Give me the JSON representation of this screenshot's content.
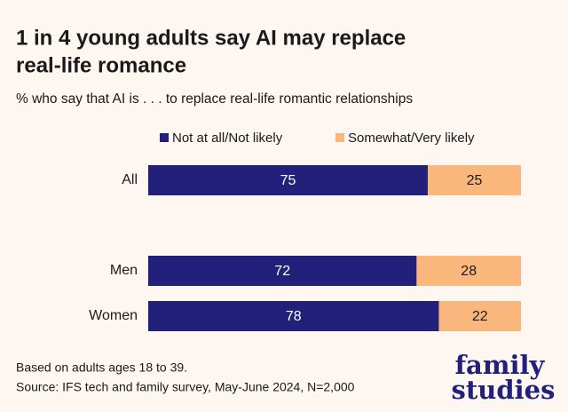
{
  "chart_data": {
    "type": "stacked-bar-horizontal",
    "title": [
      "1 in 4 young adults say AI may replace",
      "real-life romance"
    ],
    "subtitle": "% who say that AI is . . . to replace real-life romantic relationships",
    "categories": [
      "All",
      null,
      "Men",
      "Women"
    ],
    "series": [
      {
        "name": "Not at all/Not likely",
        "color": "#22207a",
        "values": [
          75,
          null,
          72,
          78
        ]
      },
      {
        "name": "Somewhat/Very likely",
        "color": "#fab77b",
        "values": [
          25,
          null,
          28,
          22
        ]
      }
    ],
    "xlim": [
      0,
      100
    ],
    "notes": [
      "Based on adults ages 18 to 39.",
      "Source: IFS tech and family survey, May-June 2024, N=2,000"
    ],
    "logo": [
      "family",
      "studies"
    ]
  }
}
